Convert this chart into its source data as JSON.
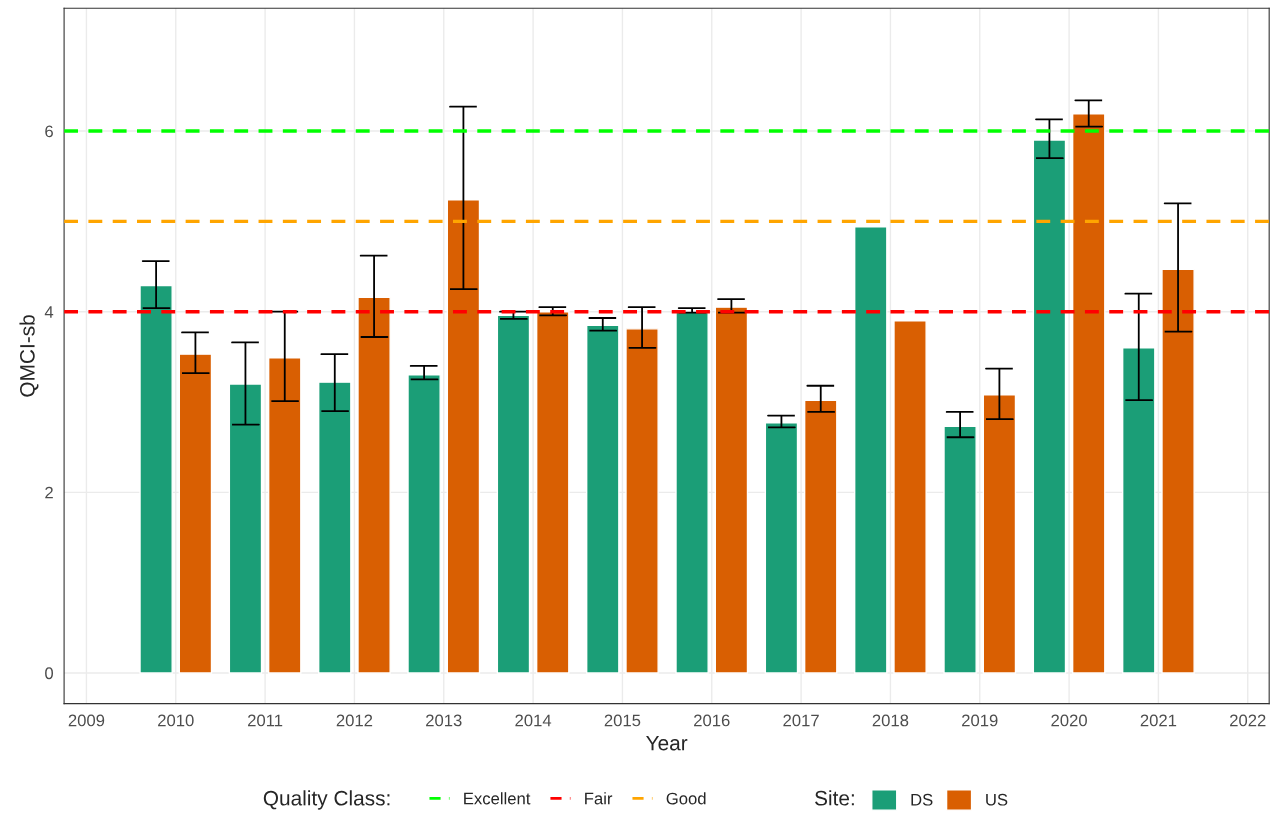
{
  "chart_data": {
    "type": "bar",
    "xlabel": "Year",
    "ylabel": "QMCI-sb",
    "legend_title": "Site:",
    "annotations": [
      "Quality Class:"
    ],
    "x": [
      2010,
      2011,
      2012,
      2013,
      2014,
      2015,
      2016,
      2017,
      2018,
      2019,
      2020,
      2021
    ],
    "series": [
      {
        "name": "DS",
        "color": "#1b9e77",
        "values": [
          4.29,
          3.2,
          3.22,
          3.3,
          3.96,
          3.85,
          4.0,
          2.77,
          4.94,
          2.73,
          5.9,
          3.6
        ],
        "errors": [
          [
            4.04,
            4.56
          ],
          [
            2.75,
            3.66
          ],
          [
            2.9,
            3.53
          ],
          [
            3.25,
            3.4
          ],
          [
            3.92,
            4.0
          ],
          [
            3.79,
            3.93
          ],
          [
            3.99,
            4.04
          ],
          [
            2.72,
            2.85
          ],
          null,
          [
            2.61,
            2.89
          ],
          [
            5.7,
            6.13
          ],
          [
            3.02,
            4.2
          ]
        ]
      },
      {
        "name": "US",
        "color": "#d95f02",
        "values": [
          3.53,
          3.49,
          4.16,
          5.24,
          4.0,
          3.81,
          4.05,
          3.02,
          3.9,
          3.08,
          6.19,
          4.47
        ],
        "errors": [
          [
            3.32,
            3.77
          ],
          [
            3.01,
            4.0
          ],
          [
            3.72,
            4.62
          ],
          [
            4.25,
            6.27
          ],
          [
            3.96,
            4.05
          ],
          [
            3.6,
            4.05
          ],
          [
            3.99,
            4.14
          ],
          [
            2.89,
            3.18
          ],
          null,
          [
            2.81,
            3.37
          ],
          [
            6.05,
            6.34
          ],
          [
            3.78,
            5.2
          ]
        ]
      }
    ],
    "ref_lines": [
      {
        "axis": "y",
        "value": 6,
        "label": "Excellent",
        "color": "#00ff00",
        "line_style": "dashed"
      },
      {
        "axis": "y",
        "value": 4,
        "label": "Fair",
        "color": "#ff0000",
        "line_style": "dashed"
      },
      {
        "axis": "y",
        "value": 5,
        "label": "Good",
        "color": "#ffa500",
        "line_style": "dashed"
      }
    ],
    "xlim": [
      2008.75,
      2022.24
    ],
    "xticks": [
      2009,
      2010,
      2011,
      2012,
      2013,
      2014,
      2015,
      2016,
      2017,
      2018,
      2019,
      2020,
      2021,
      2022
    ],
    "ylim": [
      -0.34,
      7.36
    ],
    "yticks": [
      0,
      2,
      4,
      6
    ],
    "grid": true,
    "legend": "bottom"
  }
}
